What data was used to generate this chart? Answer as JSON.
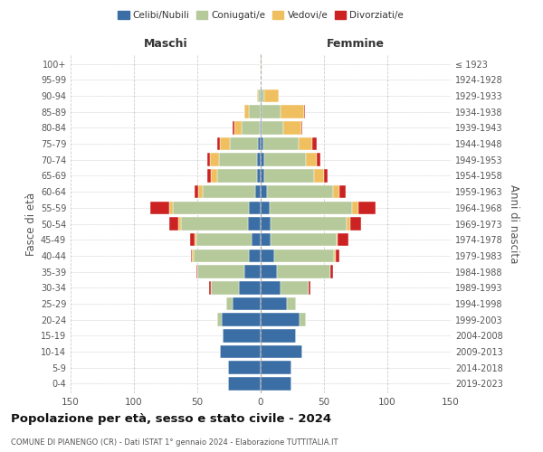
{
  "age_groups": [
    "0-4",
    "5-9",
    "10-14",
    "15-19",
    "20-24",
    "25-29",
    "30-34",
    "35-39",
    "40-44",
    "45-49",
    "50-54",
    "55-59",
    "60-64",
    "65-69",
    "70-74",
    "75-79",
    "80-84",
    "85-89",
    "90-94",
    "95-99",
    "100+"
  ],
  "birth_years": [
    "2019-2023",
    "2014-2018",
    "2009-2013",
    "2004-2008",
    "1999-2003",
    "1994-1998",
    "1989-1993",
    "1984-1988",
    "1979-1983",
    "1974-1978",
    "1969-1973",
    "1964-1968",
    "1959-1963",
    "1954-1958",
    "1949-1953",
    "1944-1948",
    "1939-1943",
    "1934-1938",
    "1929-1933",
    "1924-1928",
    "≤ 1923"
  ],
  "colors": {
    "celibi": "#3a6ea5",
    "coniugati": "#b5c99a",
    "vedovi": "#f0c060",
    "divorziati": "#cc2222"
  },
  "males": {
    "celibi": [
      26,
      26,
      32,
      30,
      31,
      22,
      17,
      13,
      9,
      7,
      10,
      9,
      4,
      3,
      3,
      2,
      1,
      0,
      0,
      0,
      0
    ],
    "coniugati": [
      0,
      0,
      0,
      0,
      3,
      5,
      22,
      37,
      44,
      44,
      53,
      60,
      42,
      31,
      30,
      22,
      14,
      9,
      2,
      0,
      0
    ],
    "vedovi": [
      0,
      0,
      0,
      0,
      0,
      0,
      0,
      0,
      1,
      1,
      2,
      3,
      3,
      5,
      7,
      8,
      6,
      4,
      1,
      0,
      0
    ],
    "divorziati": [
      0,
      0,
      0,
      0,
      0,
      0,
      2,
      1,
      1,
      4,
      7,
      15,
      3,
      3,
      2,
      2,
      1,
      0,
      0,
      0,
      0
    ]
  },
  "females": {
    "celibi": [
      24,
      24,
      33,
      28,
      31,
      21,
      16,
      13,
      11,
      8,
      8,
      7,
      5,
      3,
      3,
      2,
      1,
      1,
      1,
      0,
      0
    ],
    "coniugati": [
      0,
      0,
      0,
      0,
      5,
      7,
      22,
      42,
      47,
      52,
      60,
      65,
      52,
      39,
      33,
      28,
      17,
      15,
      2,
      0,
      0
    ],
    "vedovi": [
      0,
      0,
      0,
      0,
      0,
      0,
      0,
      0,
      1,
      1,
      3,
      5,
      5,
      8,
      8,
      11,
      14,
      18,
      11,
      0,
      1
    ],
    "divorziati": [
      0,
      0,
      0,
      0,
      0,
      0,
      1,
      2,
      3,
      8,
      8,
      14,
      5,
      3,
      3,
      3,
      1,
      1,
      0,
      0,
      0
    ]
  },
  "title": "Popolazione per età, sesso e stato civile - 2024",
  "subtitle": "COMUNE DI PIANENGO (CR) - Dati ISTAT 1° gennaio 2024 - Elaborazione TUTTITALIA.IT",
  "xlabel_left": "Maschi",
  "xlabel_right": "Femmine",
  "ylabel_left": "Fasce di età",
  "ylabel_right": "Anni di nascita",
  "xlim": 150,
  "legend_labels": [
    "Celibi/Nubili",
    "Coniugati/e",
    "Vedovi/e",
    "Divorziati/e"
  ],
  "bg_color": "#ffffff",
  "grid_color": "#cccccc"
}
